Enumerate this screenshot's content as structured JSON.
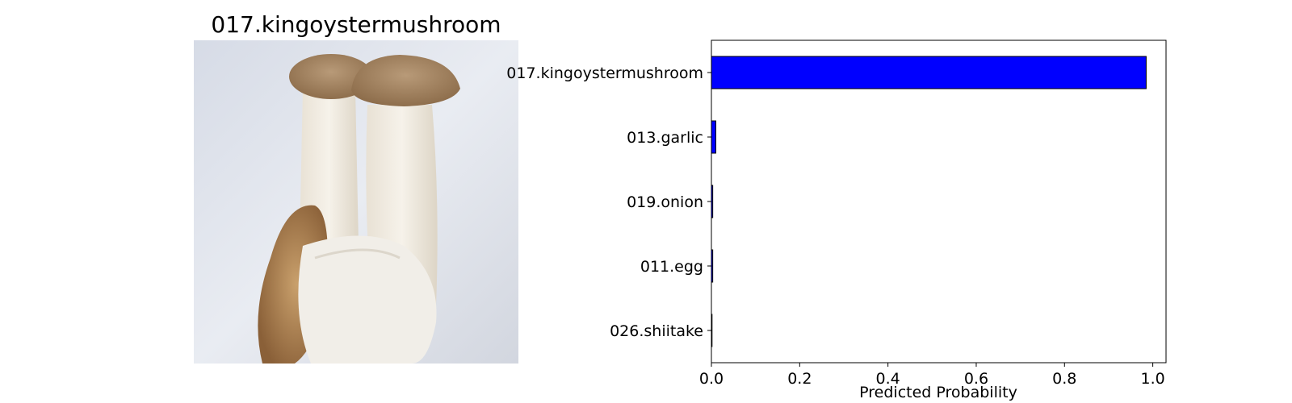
{
  "image_panel": {
    "title": "017.kingoystermushroom",
    "picture": "photo of king oyster mushrooms"
  },
  "chart_data": {
    "type": "bar",
    "orientation": "horizontal",
    "categories": [
      "017.kingoystermushroom",
      "013.garlic",
      "019.onion",
      "011.egg",
      "026.shiitake"
    ],
    "values": [
      0.985,
      0.01,
      0.003,
      0.003,
      0.001
    ],
    "xlabel": "Predicted Probability",
    "ylabel": "",
    "xlim": [
      0.0,
      1.03
    ],
    "xticks": [
      0.0,
      0.2,
      0.4,
      0.6,
      0.8,
      1.0
    ],
    "xtick_labels": [
      "0.0",
      "0.2",
      "0.4",
      "0.6",
      "0.8",
      "1.0"
    ],
    "grid": false,
    "bar_color": "#0000ff",
    "edge_color": "#000000"
  }
}
